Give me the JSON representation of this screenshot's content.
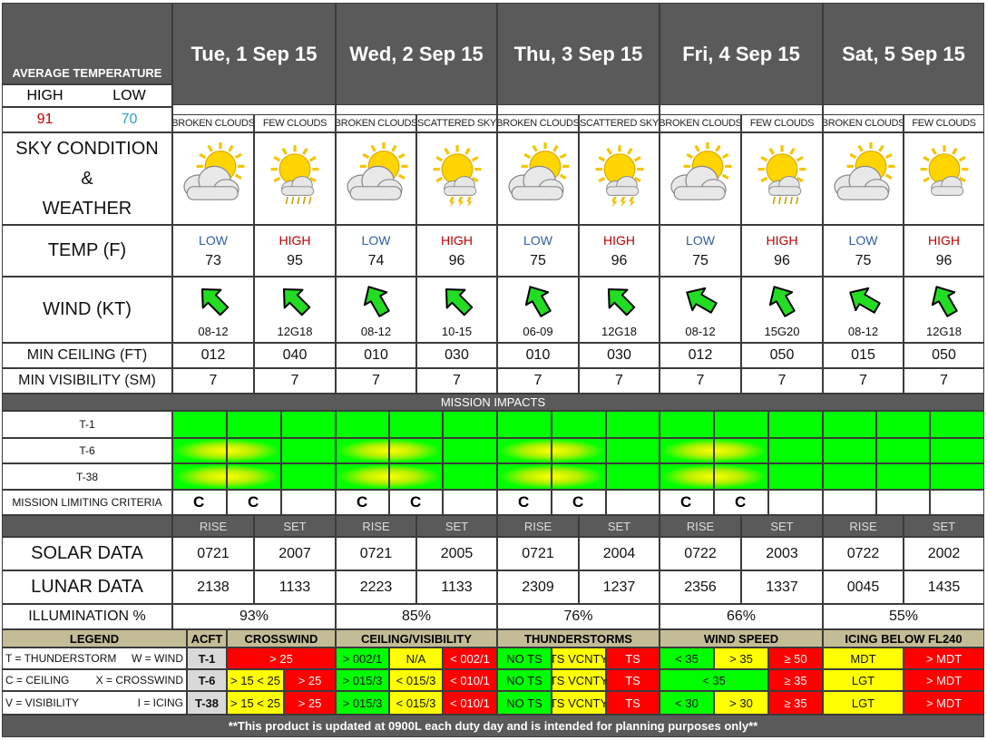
{
  "avg_temp": {
    "title": "AVERAGE TEMPERATURE",
    "high_label": "HIGH",
    "low_label": "LOW",
    "high": "91",
    "low": "70"
  },
  "labels": {
    "sky": [
      "SKY CONDITION",
      "&",
      "WEATHER"
    ],
    "temp": "TEMP (F)",
    "wind": "WIND (KT)",
    "ceiling": "MIN CEILING (FT)",
    "visibility": "MIN VISIBILITY (SM)",
    "mission_impacts": "MISSION IMPACTS",
    "aircraft": [
      "T-1",
      "T-6",
      "T-38"
    ],
    "criteria": "MISSION LIMITING CRITERIA",
    "rise": "RISE",
    "set": "SET",
    "solar": "SOLAR DATA",
    "lunar": "LUNAR DATA",
    "illumination": "ILLUMINATION %",
    "low": "LOW",
    "high": "HIGH",
    "footer": "**This product is updated at 0900L each duty day and is intended for planning purposes only**"
  },
  "days": [
    {
      "date": "Tue, 1 Sep 15",
      "sky": [
        "BROKEN CLOUDS",
        "FEW CLOUDS"
      ],
      "icons": [
        "partly-sunny-clouds-icon",
        "sunny-showers-icon"
      ],
      "temp": [
        "73",
        "95"
      ],
      "wind": [
        {
          "speed": "08-12",
          "dir_deg": 315
        },
        {
          "speed": "12G18",
          "dir_deg": 315
        }
      ],
      "ceiling": [
        "012",
        "040"
      ],
      "visibility": [
        "7",
        "7"
      ],
      "criteria": [
        "C",
        "C",
        ""
      ],
      "solar": [
        "0721",
        "2007"
      ],
      "lunar": [
        "2138",
        "1133"
      ],
      "illumination": "93%"
    },
    {
      "date": "Wed, 2 Sep 15",
      "sky": [
        "BROKEN CLOUDS",
        "SCATTERED SKY"
      ],
      "icons": [
        "partly-sunny-clouds-icon",
        "sunny-thunderstorm-icon"
      ],
      "temp": [
        "74",
        "96"
      ],
      "wind": [
        {
          "speed": "08-12",
          "dir_deg": 330
        },
        {
          "speed": "10-15",
          "dir_deg": 315
        }
      ],
      "ceiling": [
        "010",
        "030"
      ],
      "visibility": [
        "7",
        "7"
      ],
      "criteria": [
        "C",
        "C",
        ""
      ],
      "solar": [
        "0721",
        "2005"
      ],
      "lunar": [
        "2223",
        "1133"
      ],
      "illumination": "85%"
    },
    {
      "date": "Thu, 3 Sep 15",
      "sky": [
        "BROKEN CLOUDS",
        "SCATTERED SKY"
      ],
      "icons": [
        "partly-sunny-clouds-icon",
        "sunny-thunderstorm-icon"
      ],
      "temp": [
        "75",
        "96"
      ],
      "wind": [
        {
          "speed": "06-09",
          "dir_deg": 330
        },
        {
          "speed": "12G18",
          "dir_deg": 315
        }
      ],
      "ceiling": [
        "010",
        "030"
      ],
      "visibility": [
        "7",
        "7"
      ],
      "criteria": [
        "C",
        "C",
        ""
      ],
      "solar": [
        "0721",
        "2004"
      ],
      "lunar": [
        "2309",
        "1237"
      ],
      "illumination": "76%"
    },
    {
      "date": "Fri, 4 Sep 15",
      "sky": [
        "BROKEN CLOUDS",
        "FEW CLOUDS"
      ],
      "icons": [
        "partly-sunny-clouds-icon",
        "sunny-showers-icon"
      ],
      "temp": [
        "75",
        "96"
      ],
      "wind": [
        {
          "speed": "08-12",
          "dir_deg": 300
        },
        {
          "speed": "15G20",
          "dir_deg": 330
        }
      ],
      "ceiling": [
        "012",
        "050"
      ],
      "visibility": [
        "7",
        "7"
      ],
      "criteria": [
        "C",
        "C",
        ""
      ],
      "solar": [
        "0722",
        "2003"
      ],
      "lunar": [
        "2356",
        "1337"
      ],
      "illumination": "66%"
    },
    {
      "date": "Sat, 5 Sep 15",
      "sky": [
        "BROKEN CLOUDS",
        "FEW CLOUDS"
      ],
      "icons": [
        "partly-sunny-clouds-icon",
        "sunny-clouds-icon"
      ],
      "temp": [
        "75",
        "96"
      ],
      "wind": [
        {
          "speed": "08-12",
          "dir_deg": 300
        },
        {
          "speed": "12G18",
          "dir_deg": 330
        }
      ],
      "ceiling": [
        "015",
        "050"
      ],
      "visibility": [
        "7",
        "7"
      ],
      "criteria": [
        "",
        "",
        ""
      ],
      "solar": [
        "0722",
        "2002"
      ],
      "lunar": [
        "0045",
        "1435"
      ],
      "illumination": "55%"
    }
  ],
  "impact_colors": {
    "green": "#00ff00",
    "yellow": "#ffff00",
    "red": "#ff0000"
  },
  "legend": {
    "title": "LEGEND",
    "acft_title": "ACFT",
    "lines": [
      [
        "T = THUNDERSTORM",
        "W = WIND"
      ],
      [
        "C = CEILING",
        "X = CROSSWIND"
      ],
      [
        "V = VISIBILITY",
        "I = ICING"
      ]
    ],
    "aircraft": [
      "T-1",
      "T-6",
      "T-38"
    ]
  },
  "criteria_table": {
    "headers": [
      "CROSSWIND",
      "CEILING/VISIBILITY",
      "THUNDERSTORMS",
      "WIND SPEED",
      "ICING BELOW FL240"
    ],
    "rows": [
      {
        "crosswind": [
          {
            "t": "> 25",
            "c": "red"
          }
        ],
        "ceilvis": [
          {
            "t": "> 002/1",
            "c": "green"
          },
          {
            "t": "N/A",
            "c": "yellow"
          },
          {
            "t": "< 002/1",
            "c": "red"
          }
        ],
        "ts": [
          {
            "t": "NO TS",
            "c": "green"
          },
          {
            "t": "TS VCNTY",
            "c": "yellow"
          },
          {
            "t": "TS",
            "c": "red"
          }
        ],
        "wind": [
          {
            "t": "< 35",
            "c": "green"
          },
          {
            "t": "> 35",
            "c": "yellow"
          },
          {
            "t": "≥ 50",
            "c": "red"
          }
        ],
        "icing": [
          {
            "t": "MDT",
            "c": "yellow"
          },
          {
            "t": "> MDT",
            "c": "red"
          }
        ]
      },
      {
        "crosswind": [
          {
            "t": "> 15 < 25",
            "c": "yellow"
          },
          {
            "t": "> 25",
            "c": "red"
          }
        ],
        "ceilvis": [
          {
            "t": "> 015/3",
            "c": "green"
          },
          {
            "t": "< 015/3",
            "c": "yellow"
          },
          {
            "t": "< 010/1",
            "c": "red"
          }
        ],
        "ts": [
          {
            "t": "NO TS",
            "c": "green"
          },
          {
            "t": "TS VCNTY",
            "c": "yellow"
          },
          {
            "t": "TS",
            "c": "red"
          }
        ],
        "wind": [
          {
            "t": "< 35",
            "c": "green"
          },
          {
            "t": "≥ 35",
            "c": "red"
          }
        ],
        "icing": [
          {
            "t": "LGT",
            "c": "yellow"
          },
          {
            "t": "> MDT",
            "c": "red"
          }
        ]
      },
      {
        "crosswind": [
          {
            "t": "> 15 < 25",
            "c": "yellow"
          },
          {
            "t": "> 25",
            "c": "red"
          }
        ],
        "ceilvis": [
          {
            "t": "> 015/3",
            "c": "green"
          },
          {
            "t": "< 015/3",
            "c": "yellow"
          },
          {
            "t": "< 010/1",
            "c": "red"
          }
        ],
        "ts": [
          {
            "t": "NO TS",
            "c": "green"
          },
          {
            "t": "TS VCNTY",
            "c": "yellow"
          },
          {
            "t": "TS",
            "c": "red"
          }
        ],
        "wind": [
          {
            "t": "< 30",
            "c": "green"
          },
          {
            "t": "> 30",
            "c": "yellow"
          },
          {
            "t": "≥ 35",
            "c": "red"
          }
        ],
        "icing": [
          {
            "t": "LGT",
            "c": "yellow"
          },
          {
            "t": "> MDT",
            "c": "red"
          }
        ]
      }
    ]
  }
}
